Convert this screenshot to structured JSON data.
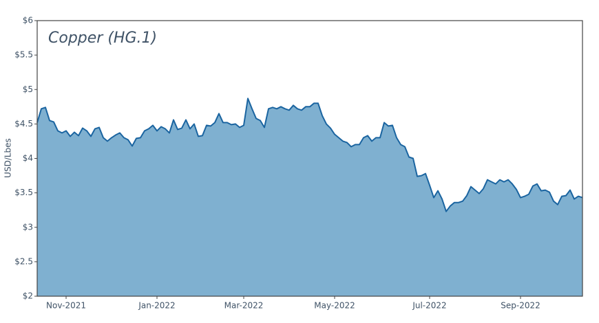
{
  "chart_data": {
    "type": "area",
    "title": "Copper (HG.1)",
    "y_label": "USD/Lbes",
    "categories": [
      null,
      null,
      null,
      null,
      null,
      null,
      null,
      "Nov-2021",
      null,
      null,
      null,
      null,
      null,
      null,
      null,
      null,
      null,
      null,
      null,
      null,
      null,
      null,
      null,
      null,
      null,
      null,
      null,
      null,
      null,
      "Jan-2022",
      null,
      null,
      null,
      null,
      null,
      null,
      null,
      null,
      null,
      null,
      null,
      null,
      null,
      null,
      null,
      null,
      null,
      null,
      null,
      null,
      "Mar-2022",
      null,
      null,
      null,
      null,
      null,
      null,
      null,
      null,
      null,
      null,
      null,
      null,
      null,
      null,
      null,
      null,
      null,
      null,
      null,
      null,
      null,
      "May-2022",
      null,
      null,
      null,
      null,
      null,
      null,
      null,
      null,
      null,
      null,
      null,
      null,
      null,
      null,
      null,
      null,
      null,
      null,
      null,
      null,
      null,
      null,
      "Jul-2022",
      null,
      null,
      null,
      null,
      null,
      null,
      null,
      null,
      null,
      null,
      null,
      null,
      null,
      null,
      null,
      null,
      null,
      null,
      null,
      null,
      null,
      "Sep-2022",
      null,
      null,
      null,
      null,
      null,
      null,
      null,
      null,
      null,
      null,
      null,
      null,
      null,
      null,
      null
    ],
    "values": [
      4.52,
      4.72,
      4.74,
      4.55,
      4.53,
      4.4,
      4.37,
      4.4,
      4.32,
      4.38,
      4.33,
      4.44,
      4.4,
      4.32,
      4.43,
      4.45,
      4.3,
      4.25,
      4.3,
      4.34,
      4.37,
      4.3,
      4.27,
      4.18,
      4.29,
      4.3,
      4.4,
      4.43,
      4.48,
      4.4,
      4.46,
      4.43,
      4.37,
      4.56,
      4.42,
      4.44,
      4.56,
      4.43,
      4.5,
      4.32,
      4.33,
      4.48,
      4.47,
      4.52,
      4.65,
      4.52,
      4.52,
      4.49,
      4.5,
      4.45,
      4.48,
      4.87,
      4.72,
      4.58,
      4.55,
      4.45,
      4.72,
      4.74,
      4.72,
      4.75,
      4.72,
      4.7,
      4.77,
      4.72,
      4.7,
      4.75,
      4.75,
      4.8,
      4.8,
      4.62,
      4.5,
      4.44,
      4.35,
      4.3,
      4.25,
      4.23,
      4.17,
      4.2,
      4.2,
      4.3,
      4.33,
      4.25,
      4.3,
      4.3,
      4.52,
      4.47,
      4.48,
      4.3,
      4.2,
      4.17,
      4.02,
      4.0,
      3.74,
      3.75,
      3.78,
      3.61,
      3.43,
      3.53,
      3.41,
      3.23,
      3.31,
      3.36,
      3.36,
      3.38,
      3.46,
      3.59,
      3.54,
      3.49,
      3.56,
      3.69,
      3.66,
      3.63,
      3.69,
      3.66,
      3.69,
      3.63,
      3.55,
      3.43,
      3.45,
      3.48,
      3.6,
      3.63,
      3.53,
      3.54,
      3.51,
      3.38,
      3.33,
      3.45,
      3.46,
      3.54,
      3.41,
      3.45,
      3.43
    ],
    "color": "#1a64a0",
    "fill": "#7fb0d0",
    "ylim": [
      2,
      6
    ],
    "yticks": [
      {
        "value": 2,
        "label": "$2"
      },
      {
        "value": 2.5,
        "label": "$2.5"
      },
      {
        "value": 3,
        "label": "$3"
      },
      {
        "value": 3.5,
        "label": "$3.5"
      },
      {
        "value": 4,
        "label": "$4"
      },
      {
        "value": 4.5,
        "label": "$4.5"
      },
      {
        "value": 5,
        "label": "$5"
      },
      {
        "value": 5.5,
        "label": "$5.5"
      },
      {
        "value": 6,
        "label": "$6"
      }
    ],
    "grid": false
  }
}
